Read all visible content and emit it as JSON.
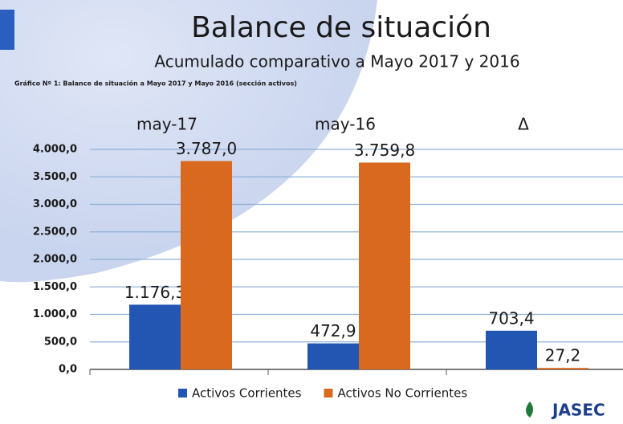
{
  "title": "Balance de situación",
  "subtitle": "Acumulado comparativo a Mayo 2017 y 2016",
  "logo": "JASEC",
  "chart_data": {
    "type": "bar",
    "title": "Gráfico Nº 1: Balance de situación a  Mayo 2017 y Mayo 2016 (sección activos)",
    "categories": [
      "may-17",
      "may-16",
      "Δ"
    ],
    "series": [
      {
        "name": "Activos Corrientes",
        "color": "#2356b2",
        "values": [
          1176.3,
          472.9,
          703.4
        ],
        "value_labels": [
          "1.176,3",
          "472,9",
          "703,4"
        ]
      },
      {
        "name": "Activos No Corrientes",
        "color": "#d8691f",
        "values": [
          3787.0,
          3759.8,
          27.2
        ],
        "value_labels": [
          "3.787,0",
          "3.759,8",
          "27,2"
        ]
      }
    ],
    "ylim": [
      0,
      4000
    ],
    "yticks": [
      {
        "value": 0,
        "label": "0,0"
      },
      {
        "value": 500,
        "label": "500,0"
      },
      {
        "value": 1000,
        "label": "1.000,0"
      },
      {
        "value": 1500,
        "label": "1.500,0"
      },
      {
        "value": 2000,
        "label": "2.000,0"
      },
      {
        "value": 2500,
        "label": "2.500,0"
      },
      {
        "value": 3000,
        "label": "3.000,0"
      },
      {
        "value": 3500,
        "label": "3.500,0"
      },
      {
        "value": 4000,
        "label": "4.000,0"
      }
    ],
    "grid": true,
    "legend": "bottom"
  }
}
